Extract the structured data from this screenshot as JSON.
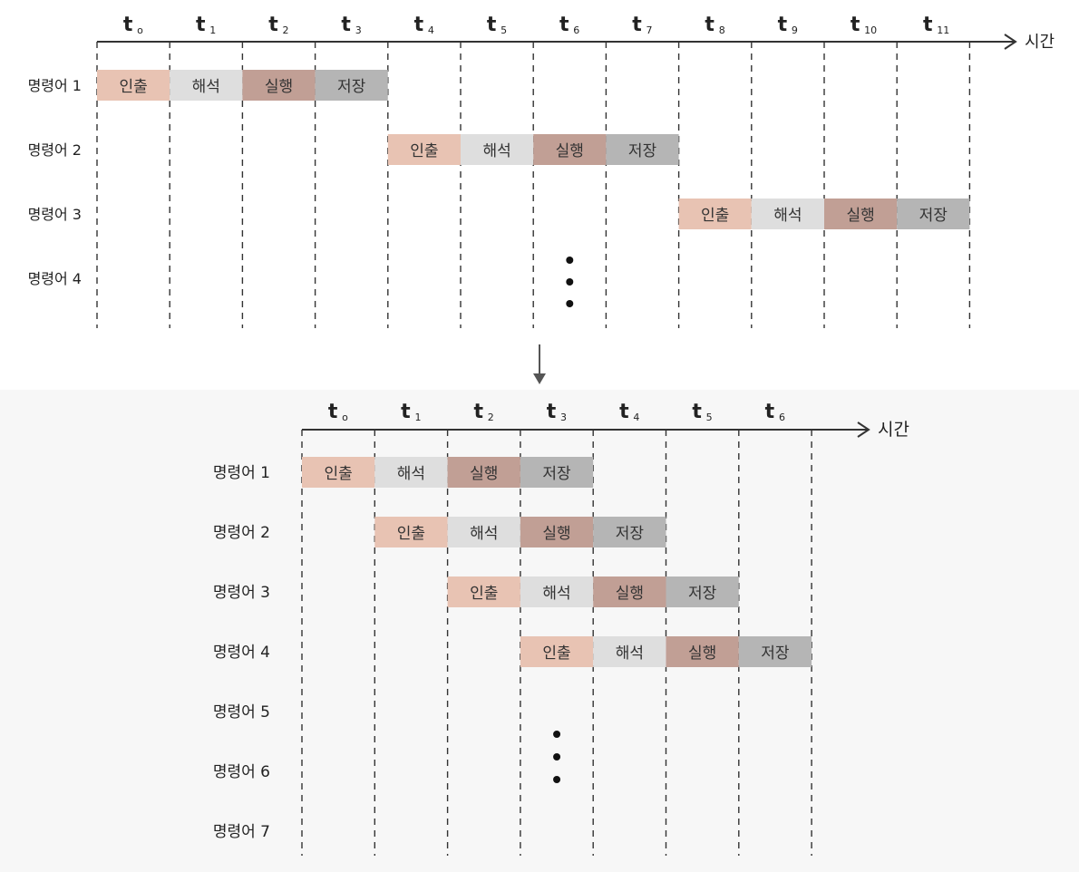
{
  "colors": {
    "fetch": "#e8c3b3",
    "decode": "#dedede",
    "execute": "#c19f95",
    "store": "#b5b5b5",
    "line": "#333333",
    "dots": "#111111"
  },
  "axis_label": "시간",
  "stage_labels": [
    "인출",
    "해석",
    "실행",
    "저장"
  ],
  "before": {
    "ticks": [
      "t0",
      "t1",
      "t2",
      "t3",
      "t4",
      "t5",
      "t6",
      "t7",
      "t8",
      "t9",
      "t10",
      "t11"
    ],
    "tick_subs": [
      "o",
      "1",
      "2",
      "3",
      "4",
      "5",
      "6",
      "7",
      "8",
      "9",
      "10",
      "11"
    ],
    "rows": [
      "명령어 1",
      "명령어 2",
      "명령어 3",
      "명령어 4"
    ],
    "instructions": [
      {
        "row": 0,
        "start": 0
      },
      {
        "row": 1,
        "start": 4
      },
      {
        "row": 2,
        "start": 8
      }
    ],
    "ellipsis": {
      "column": 6
    }
  },
  "after": {
    "ticks": [
      "t0",
      "t1",
      "t2",
      "t3",
      "t4",
      "t5",
      "t6"
    ],
    "tick_subs": [
      "o",
      "1",
      "2",
      "3",
      "4",
      "5",
      "6"
    ],
    "rows": [
      "명령어 1",
      "명령어 2",
      "명령어 3",
      "명령어 4",
      "명령어 5",
      "명령어 6",
      "명령어 7"
    ],
    "instructions": [
      {
        "row": 0,
        "start": 0
      },
      {
        "row": 1,
        "start": 1
      },
      {
        "row": 2,
        "start": 2
      },
      {
        "row": 3,
        "start": 3
      }
    ],
    "ellipsis": {
      "column": 3
    }
  }
}
